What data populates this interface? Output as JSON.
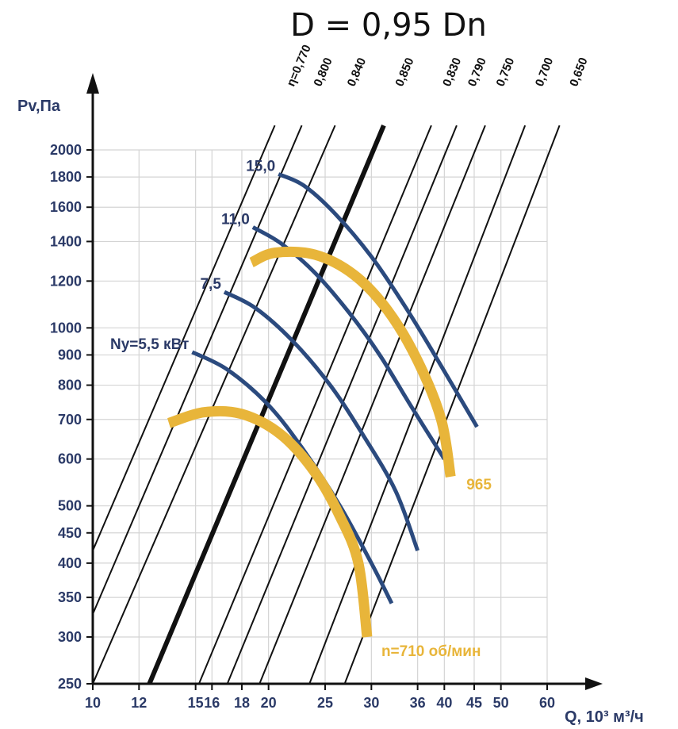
{
  "chart_data": {
    "type": "line",
    "title": "D = 0,95 Dn",
    "xlabel": "Q, 10³ м³/ч",
    "ylabel": "Pv,Па",
    "x_scale": "log",
    "y_scale": "log",
    "xlim": [
      10,
      65
    ],
    "ylim": [
      250,
      2300
    ],
    "x_ticks": [
      10,
      12,
      15,
      16,
      18,
      20,
      25,
      30,
      36,
      40,
      45,
      50,
      60
    ],
    "y_ticks": [
      250,
      300,
      350,
      400,
      450,
      500,
      600,
      700,
      800,
      900,
      1000,
      1200,
      1400,
      1600,
      1800,
      2000
    ],
    "grid": true,
    "efficiency_lines": [
      {
        "label": "η=0,770",
        "points": [
          [
            10,
            420
          ],
          [
            20.5,
            2200
          ]
        ]
      },
      {
        "label": "0,800",
        "points": [
          [
            10,
            328
          ],
          [
            22.8,
            2200
          ]
        ]
      },
      {
        "label": "0,840",
        "points": [
          [
            10,
            250
          ],
          [
            26.0,
            2200
          ]
        ]
      },
      {
        "label": "0,850",
        "points": [
          [
            12.5,
            250
          ],
          [
            31.5,
            2200
          ]
        ],
        "bold": true
      },
      {
        "label": "0,830",
        "points": [
          [
            15.2,
            250
          ],
          [
            38.0,
            2200
          ]
        ]
      },
      {
        "label": "0,790",
        "points": [
          [
            17.0,
            250
          ],
          [
            42.0,
            2200
          ]
        ]
      },
      {
        "label": "0,750",
        "points": [
          [
            19.3,
            250
          ],
          [
            47.0,
            2200
          ]
        ]
      },
      {
        "label": "0,700",
        "points": [
          [
            23.5,
            250
          ],
          [
            55.0,
            2200
          ]
        ]
      },
      {
        "label": "0,650",
        "points": [
          [
            27.0,
            250
          ],
          [
            63.0,
            2200
          ]
        ]
      }
    ],
    "power_curves": [
      {
        "label": "Ny=5,5 кВт",
        "points": [
          [
            14.8,
            910
          ],
          [
            17,
            850
          ],
          [
            20,
            740
          ],
          [
            23,
            620
          ],
          [
            26.5,
            500
          ],
          [
            30,
            400
          ],
          [
            32.5,
            342
          ]
        ]
      },
      {
        "label": "7,5",
        "points": [
          [
            16.8,
            1150
          ],
          [
            19,
            1080
          ],
          [
            22,
            950
          ],
          [
            25.5,
            800
          ],
          [
            29,
            660
          ],
          [
            33,
            530
          ],
          [
            36,
            420
          ]
        ]
      },
      {
        "label": "11,0",
        "points": [
          [
            18.8,
            1480
          ],
          [
            21,
            1390
          ],
          [
            24,
            1240
          ],
          [
            27.5,
            1060
          ],
          [
            31,
            900
          ],
          [
            35,
            740
          ],
          [
            40,
            600
          ]
        ]
      },
      {
        "label": "15,0",
        "points": [
          [
            20.8,
            1820
          ],
          [
            23,
            1740
          ],
          [
            26,
            1560
          ],
          [
            30,
            1320
          ],
          [
            34,
            1100
          ],
          [
            38,
            920
          ],
          [
            45.5,
            680
          ]
        ]
      }
    ],
    "speed_curves": [
      {
        "label": "n=710 об/мин",
        "points": [
          [
            13.5,
            690
          ],
          [
            15.5,
            720
          ],
          [
            18,
            715
          ],
          [
            21,
            660
          ],
          [
            24,
            570
          ],
          [
            26.5,
            480
          ],
          [
            28.5,
            400
          ],
          [
            29.5,
            300
          ]
        ]
      },
      {
        "label": "965",
        "points": [
          [
            18.7,
            1290
          ],
          [
            20.5,
            1340
          ],
          [
            24,
            1330
          ],
          [
            28,
            1230
          ],
          [
            32,
            1070
          ],
          [
            36,
            880
          ],
          [
            39.5,
            700
          ],
          [
            41,
            560
          ]
        ]
      }
    ],
    "colors": {
      "power": "#2b4a7e",
      "speed": "#e8b53a",
      "efficiency": "#111111",
      "grid": "#d4d4d4",
      "text": "#2b3a67"
    }
  }
}
